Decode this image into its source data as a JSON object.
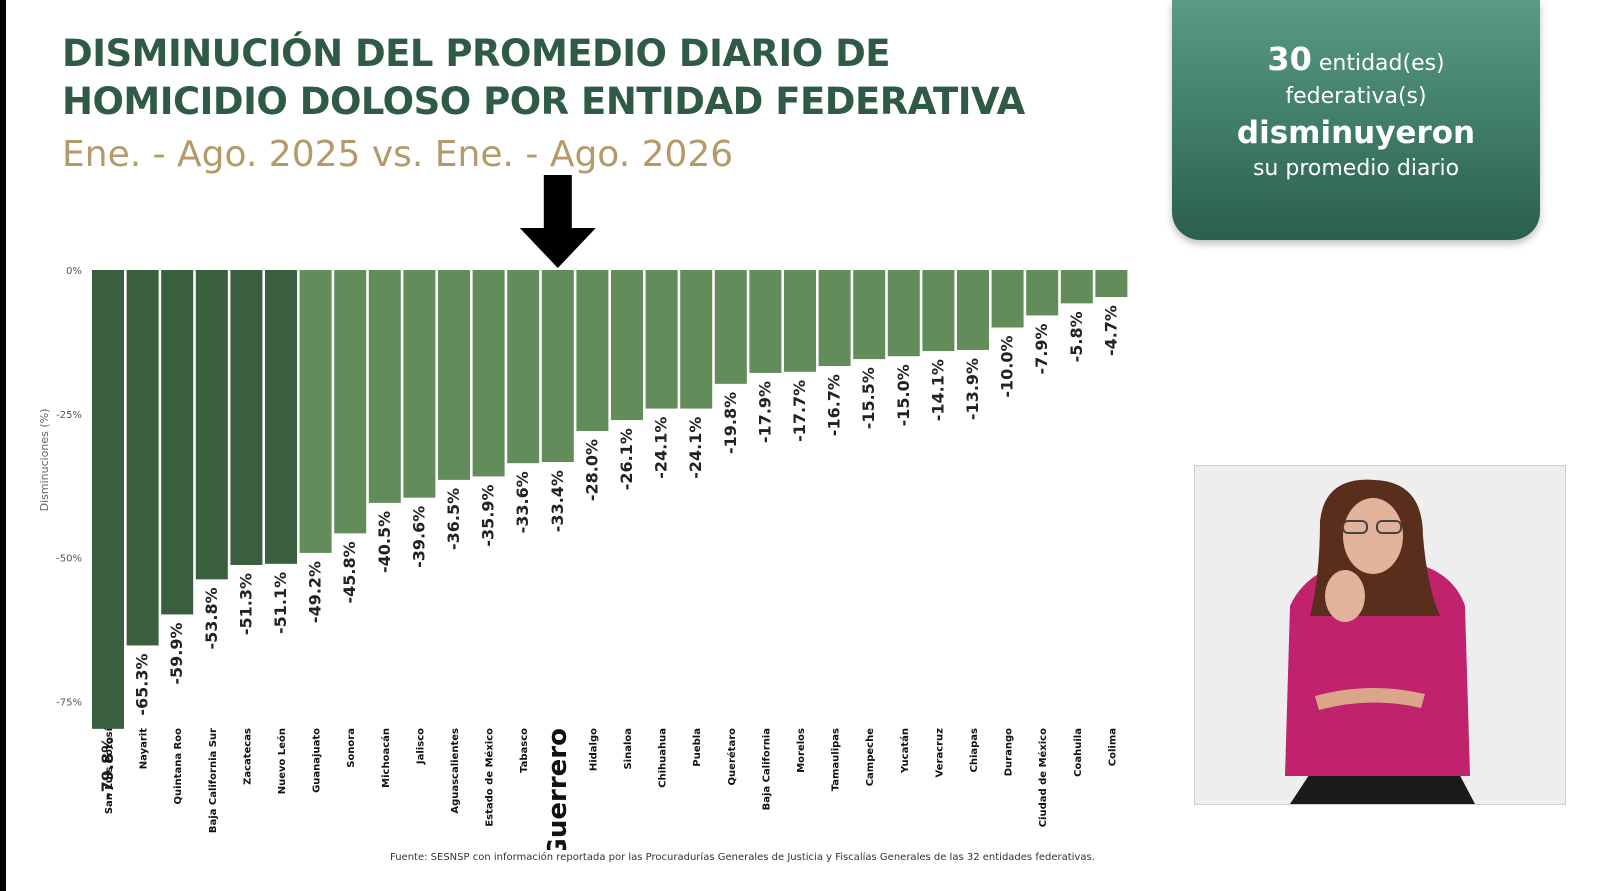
{
  "title_line1": "DISMINUCIÓN DEL PROMEDIO DIARIO DE",
  "title_line2": "HOMICIDIO DOLOSO POR ENTIDAD FEDERATIVA",
  "subtitle": "Ene. - Ago. 2025 vs. Ene. - Ago. 2026",
  "summary": {
    "count": "30",
    "line1_rest": " entidad(es)",
    "line2": "federativa(s)",
    "line3": "disminuyeron",
    "line4": "su promedio diario"
  },
  "highlight": {
    "label": "Guerrero",
    "arrow_icon": "down-arrow-icon"
  },
  "footnote": "Fuente: SESNSP con información reportada por las Procuradurías Generales de Justicia y Fiscalías Generales de las 32 entidades federativas.",
  "colors": {
    "title": "#2f5a45",
    "subtitle": "#b49a69",
    "bar_dark": "#3a5f3e",
    "bar_light": "#628d5b",
    "summary_box": "#3e7b68"
  },
  "chart_data": {
    "type": "bar",
    "title": "",
    "xlabel": "",
    "ylabel": "Disminuciones (%)",
    "ylim": [
      -80,
      0
    ],
    "yticks": [
      0,
      -25,
      -50,
      -75
    ],
    "ytick_labels": [
      "0%",
      "-25%",
      "-50%",
      "-75%"
    ],
    "grid": false,
    "dark_bar_count": 6,
    "categories": [
      "San Luis Potosí",
      "Nayarit",
      "Quintana Roo",
      "Baja California Sur",
      "Zacatecas",
      "Nuevo León",
      "Guanajuato",
      "Sonora",
      "Michoacán",
      "Jalisco",
      "Aguascalientes",
      "Estado de México",
      "Tabasco",
      "Guerrero",
      "Hidalgo",
      "Sinaloa",
      "Chihuahua",
      "Puebla",
      "Querétaro",
      "Baja California",
      "Morelos",
      "Tamaulipas",
      "Campeche",
      "Yucatán",
      "Veracruz",
      "Chiapas",
      "Durango",
      "Ciudad de México",
      "Coahuila",
      "Colima"
    ],
    "values": [
      -79.8,
      -65.3,
      -59.9,
      -53.8,
      -51.3,
      -51.1,
      -49.2,
      -45.8,
      -40.5,
      -39.6,
      -36.5,
      -35.9,
      -33.6,
      -33.4,
      -28.0,
      -26.1,
      -24.1,
      -24.1,
      -19.8,
      -17.9,
      -17.7,
      -16.7,
      -15.5,
      -15.0,
      -14.1,
      -13.9,
      -10.0,
      -7.9,
      -5.8,
      -4.7
    ],
    "value_labels": [
      "-79.8%",
      "-65.3%",
      "-59.9%",
      "-53.8%",
      "-51.3%",
      "-51.1%",
      "-49.2%",
      "-45.8%",
      "-40.5%",
      "-39.6%",
      "-36.5%",
      "-35.9%",
      "-33.6%",
      "-33.4%",
      "-28.0%",
      "-26.1%",
      "-24.1%",
      "-24.1%",
      "-19.8%",
      "-17.9%",
      "-17.7%",
      "-16.7%",
      "-15.5%",
      "-15.0%",
      "-14.1%",
      "-13.9%",
      "-10.0%",
      "-7.9%",
      "-5.8%",
      "-4.7%"
    ],
    "highlight_index": 13
  }
}
